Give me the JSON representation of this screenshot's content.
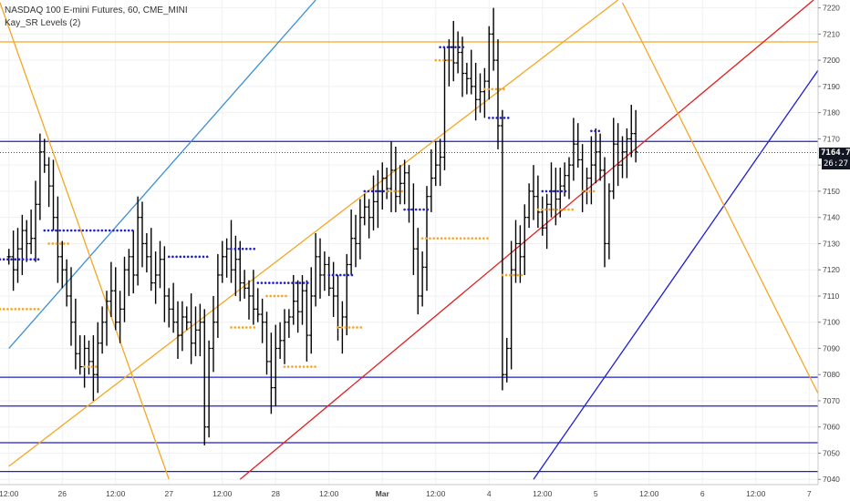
{
  "legend": {
    "symbol": "NASDAQ 100 E-mini Futures, 60, CME_MINI",
    "indicator": "Kay_SR Levels (2)"
  },
  "current_price_label": "7164.75",
  "timer_label": "26:27",
  "chart_data": {
    "type": "ohlc",
    "y_range": [
      7038,
      7223
    ],
    "y_ticks": [
      7040,
      7050,
      7060,
      7070,
      7080,
      7090,
      7100,
      7110,
      7120,
      7130,
      7140,
      7150,
      7160,
      7170,
      7180,
      7190,
      7200,
      7210,
      7220
    ],
    "x_ticks": [
      {
        "t": 0,
        "label": "12:00"
      },
      {
        "t": 12,
        "label": "26"
      },
      {
        "t": 24,
        "label": "12:00"
      },
      {
        "t": 36,
        "label": "27"
      },
      {
        "t": 48,
        "label": "12:00"
      },
      {
        "t": 60,
        "label": "28"
      },
      {
        "t": 72,
        "label": "12:00"
      },
      {
        "t": 84,
        "label": "Mar",
        "bold": true
      },
      {
        "t": 96,
        "label": "12:00"
      },
      {
        "t": 108,
        "label": "4"
      },
      {
        "t": 120,
        "label": "12:00"
      },
      {
        "t": 132,
        "label": "5"
      },
      {
        "t": 144,
        "label": "12:00"
      },
      {
        "t": 156,
        "label": "6"
      },
      {
        "t": 168,
        "label": "12:00"
      },
      {
        "t": 180,
        "label": "7"
      }
    ],
    "bar_spacing_hours": 1,
    "bars_closes": [
      7125,
      7120,
      7128,
      7135,
      7130,
      7132,
      7145,
      7165,
      7160,
      7152,
      7140,
      7125,
      7120,
      7110,
      7100,
      7088,
      7083,
      7090,
      7085,
      7080,
      7092,
      7100,
      7108,
      7112,
      7100,
      7105,
      7120,
      7125,
      7118,
      7140,
      7130,
      7125,
      7115,
      7118,
      7124,
      7110,
      7105,
      7100,
      7095,
      7102,
      7100,
      7092,
      7097,
      7100,
      7060,
      7090,
      7100,
      7118,
      7125,
      7128,
      7120,
      7124,
      7115,
      7113,
      7110,
      7105,
      7103,
      7100,
      7085,
      7075,
      7090,
      7093,
      7100,
      7102,
      7108,
      7104,
      7112,
      7095,
      7110,
      7125,
      7118,
      7122,
      7113,
      7110,
      7098,
      7102,
      7122,
      7132,
      7130,
      7140,
      7144,
      7140,
      7146,
      7150,
      7155,
      7151,
      7158,
      7148,
      7153,
      7157,
      7143,
      7128,
      7110,
      7121,
      7148,
      7155,
      7160,
      7163,
      7200,
      7205,
      7199,
      7203,
      7195,
      7193,
      7190,
      7185,
      7188,
      7192,
      7210,
      7200,
      7175,
      7080,
      7090,
      7120,
      7130,
      7125,
      7140,
      7150,
      7148,
      7142,
      7136,
      7145,
      7150,
      7147,
      7152,
      7156,
      7160,
      7168,
      7162,
      7150,
      7155,
      7160,
      7165,
      7158,
      7130,
      7150,
      7168,
      7160,
      7165,
      7170,
      7172,
      7165
    ],
    "support_resistance": [
      {
        "price": 7169,
        "color": "#1f1fcf"
      },
      {
        "price": 7079,
        "color": "#1f1fcf"
      },
      {
        "price": 7068,
        "color": "#1f1fcf"
      },
      {
        "price": 7054,
        "color": "#1f1fcf"
      },
      {
        "price": 7043,
        "color": "#1f1fcf"
      },
      {
        "price": 7207,
        "color": "#f5a623"
      }
    ],
    "trend_lines": [
      {
        "name": "red-channel",
        "color": "#e02020",
        "t1": 52,
        "p1": 7040,
        "t2": 181,
        "p2": 7223
      },
      {
        "name": "blue-channel",
        "color": "#1f1fcf",
        "t1": 118,
        "p1": 7040,
        "t2": 193,
        "p2": 7223
      },
      {
        "name": "light-blue",
        "color": "#3b8fd6",
        "t1": 0,
        "p1": 7090,
        "t2": 69,
        "p2": 7223
      },
      {
        "name": "orange-up",
        "color": "#f5a623",
        "t1": 0,
        "p1": 7045,
        "t2": 137,
        "p2": 7223
      },
      {
        "name": "orange-down-left",
        "color": "#f5a623",
        "t1": -2,
        "p1": 7222,
        "t2": 36,
        "p2": 7040
      },
      {
        "name": "orange-down-right",
        "color": "#f5a623",
        "t1": 138,
        "p1": 7222,
        "t2": 184,
        "p2": 7066
      }
    ]
  }
}
